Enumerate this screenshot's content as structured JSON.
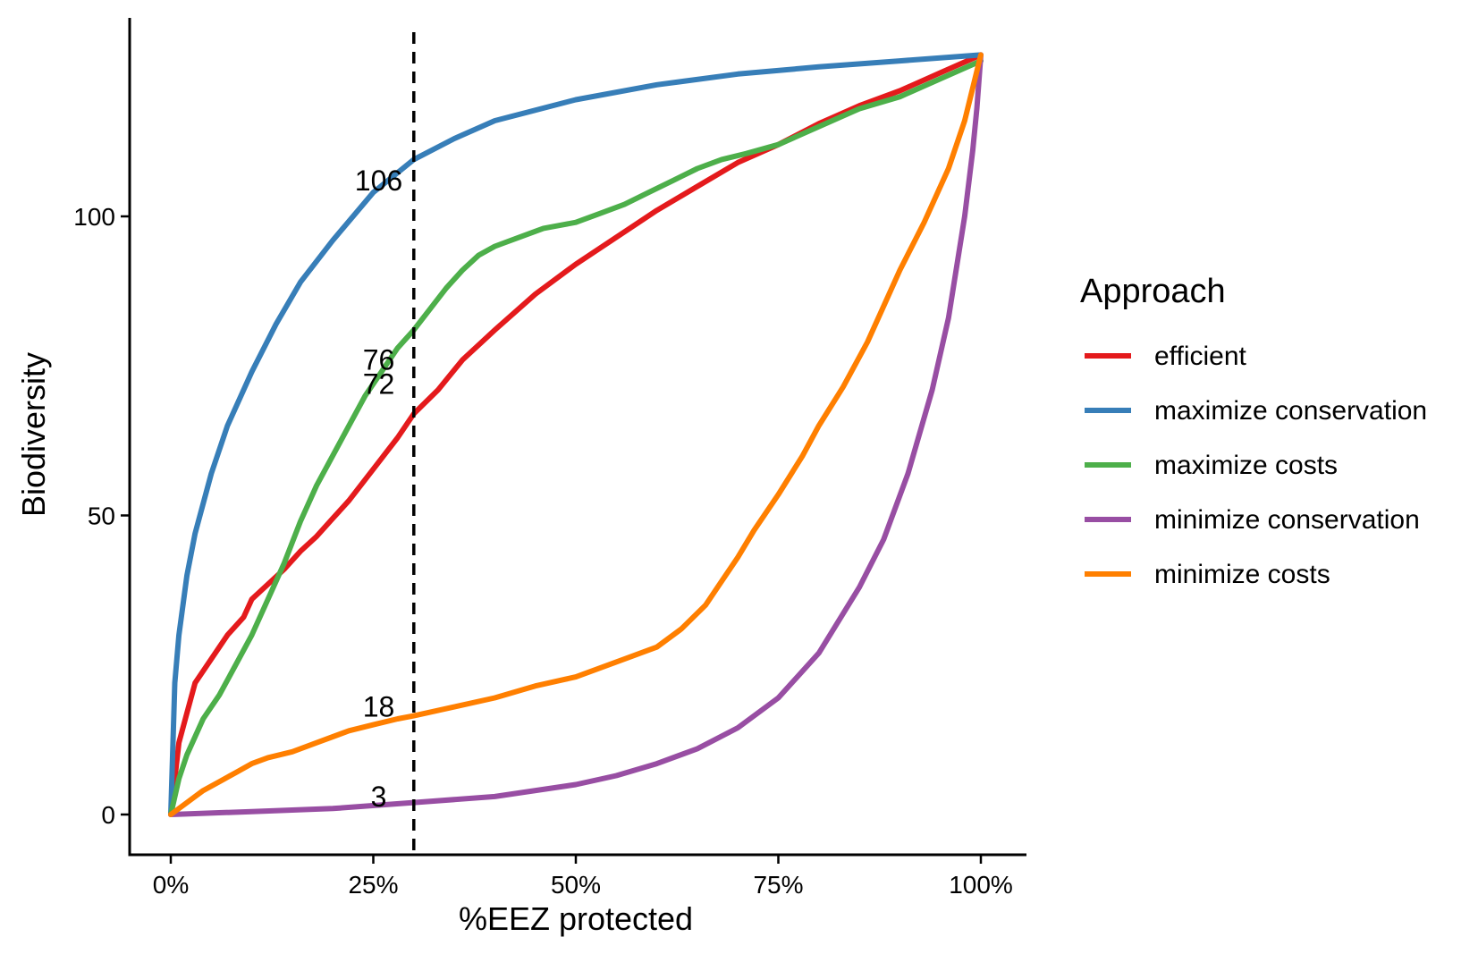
{
  "chart_data": {
    "type": "line",
    "xlabel": "%EEZ protected",
    "ylabel": "Biodiversity",
    "xlim": [
      0,
      100
    ],
    "ylim": [
      -6,
      131
    ],
    "x_ticks": [
      {
        "value": 0,
        "label": "0%"
      },
      {
        "value": 25,
        "label": "25%"
      },
      {
        "value": 50,
        "label": "50%"
      },
      {
        "value": 75,
        "label": "75%"
      },
      {
        "value": 100,
        "label": "100%"
      }
    ],
    "y_ticks": [
      {
        "value": 0,
        "label": "0"
      },
      {
        "value": 50,
        "label": "50"
      },
      {
        "value": 100,
        "label": "100"
      }
    ],
    "grid": false,
    "legend": {
      "title": "Approach",
      "position": "right"
    },
    "reference_line": {
      "x": 30,
      "style": "dashed",
      "color": "#000000"
    },
    "annotations": [
      {
        "text": "106",
        "x": 25,
        "y": 106
      },
      {
        "text": "76",
        "x": 25,
        "y": 76
      },
      {
        "text": "72",
        "x": 25,
        "y": 72
      },
      {
        "text": "18",
        "x": 25,
        "y": 18
      },
      {
        "text": "3",
        "x": 25,
        "y": 3
      }
    ],
    "series": [
      {
        "name": "efficient",
        "color": "#E41A1C",
        "x": [
          0,
          1,
          2,
          3,
          5,
          7,
          9,
          10,
          12,
          14,
          16,
          18,
          20,
          22,
          24,
          26,
          28,
          30,
          33,
          36,
          40,
          45,
          50,
          55,
          60,
          65,
          70,
          75,
          80,
          85,
          90,
          95,
          100
        ],
        "y": [
          0,
          12,
          17,
          22,
          26,
          30,
          33,
          36,
          38.5,
          41,
          44,
          46.5,
          49.5,
          52.5,
          56,
          59.5,
          63,
          67,
          71,
          76,
          81,
          87,
          92,
          96.5,
          101,
          105,
          109,
          112,
          115.5,
          118.5,
          121,
          124,
          127
        ]
      },
      {
        "name": "maximize conservation",
        "color": "#377EB8",
        "x": [
          0,
          0.5,
          1,
          2,
          3,
          5,
          7,
          10,
          13,
          16,
          20,
          25,
          30,
          35,
          40,
          50,
          60,
          70,
          80,
          90,
          100
        ],
        "y": [
          0,
          22,
          30,
          40,
          47,
          57,
          65,
          74,
          82,
          89,
          96,
          104,
          109.5,
          113,
          116,
          119.5,
          122,
          123.8,
          125,
          126,
          127
        ]
      },
      {
        "name": "maximize costs",
        "color": "#4DAF4A",
        "x": [
          0,
          1,
          2,
          4,
          6,
          8,
          10,
          12,
          14,
          16,
          18,
          20,
          22,
          24,
          26,
          28,
          30,
          32,
          34,
          36,
          38,
          40,
          43,
          46,
          50,
          53,
          56,
          59,
          62,
          65,
          68,
          71,
          75,
          80,
          85,
          90,
          95,
          100
        ],
        "y": [
          0,
          6,
          10,
          16,
          20,
          25,
          30,
          36,
          42,
          49,
          55,
          60,
          65,
          70,
          74,
          78,
          81,
          84.5,
          88,
          91,
          93.5,
          95,
          96.5,
          98,
          99,
          100.5,
          102,
          104,
          106,
          108,
          109.5,
          110.5,
          112,
          115,
          118,
          120,
          123,
          126
        ]
      },
      {
        "name": "minimize conservation",
        "color": "#984EA3",
        "x": [
          0,
          10,
          20,
          30,
          40,
          50,
          55,
          60,
          65,
          70,
          75,
          80,
          85,
          88,
          91,
          94,
          96,
          98,
          99,
          99.5,
          100
        ],
        "y": [
          0,
          0.5,
          1,
          2,
          3,
          5,
          6.5,
          8.5,
          11,
          14.5,
          19.5,
          27,
          38,
          46,
          57,
          71,
          83,
          100,
          111,
          118,
          127
        ]
      },
      {
        "name": "minimize costs",
        "color": "#FF7F00",
        "x": [
          0,
          2,
          4,
          6,
          8,
          10,
          12,
          15,
          18,
          20,
          22,
          25,
          28,
          30,
          35,
          40,
          45,
          50,
          53,
          56,
          60,
          63,
          66,
          68,
          70,
          72,
          75,
          78,
          80,
          83,
          86,
          88,
          90,
          93,
          96,
          98,
          100
        ],
        "y": [
          0,
          2,
          4,
          5.5,
          7,
          8.5,
          9.5,
          10.5,
          12,
          13,
          14,
          15,
          16,
          16.5,
          18,
          19.5,
          21.5,
          23,
          24.5,
          26,
          28,
          31,
          35,
          39,
          43,
          47.5,
          53.5,
          60,
          65,
          71.5,
          79,
          85,
          91,
          99,
          108,
          116,
          127
        ]
      }
    ]
  }
}
